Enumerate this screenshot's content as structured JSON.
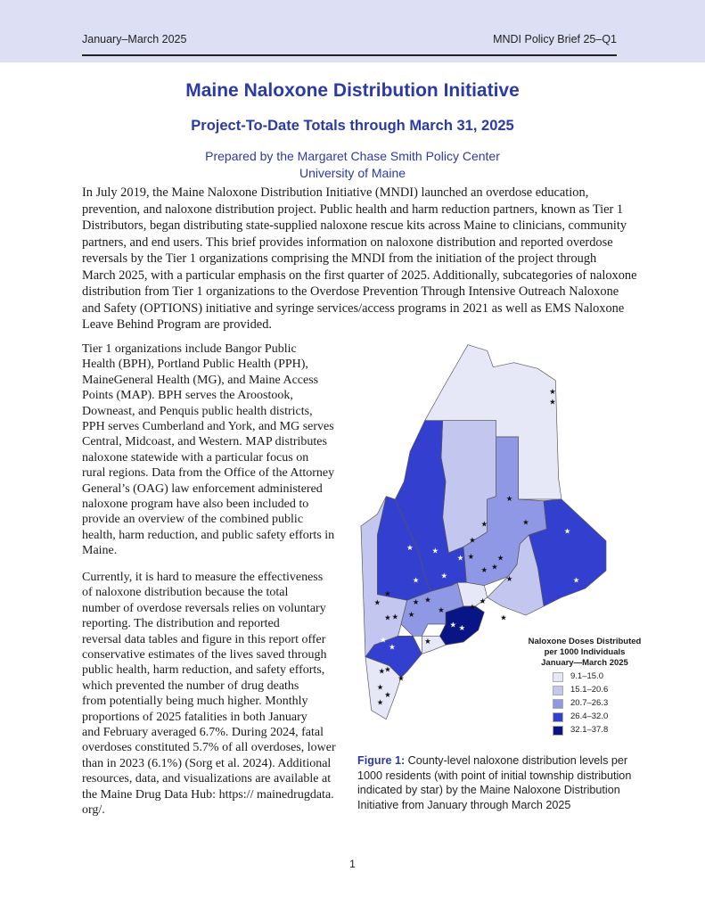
{
  "header": {
    "left": "January–March 2025",
    "right": "MNDI Policy Brief 25–Q1"
  },
  "title": "Maine Naloxone Distribution Initiative",
  "subtitle": "Project-To-Date Totals through March 31, 2025",
  "prepared_by": [
    "Prepared by the Margaret Chase Smith Policy Center",
    "University of Maine"
  ],
  "intro_lines": [
    "In July 2019, the Maine Naloxone Distribution Initiative (MNDI) launched an overdose education,",
    "prevention, and naloxone distribution project. Public health and harm reduction partners, known as Tier 1",
    "Distributors, began distributing state-supplied naloxone rescue kits across Maine to clinicians, community",
    "partners, and end users. This brief provides information on naloxone distribution and reported overdose",
    "reversals by the Tier 1 organizations comprising the MNDI from the initiation of the project through",
    "March 2025, with a particular emphasis on the first quarter of 2025. Additionally, subcategories of naloxone",
    "distribution from Tier 1 organizations to the Overdose Prevention Through Intensive Outreach Naloxone",
    "and Safety (OPTIONS) initiative and syringe services/access programs in 2021 as well as EMS Naloxone",
    "Leave Behind Program are provided."
  ],
  "para1_lines": [
    "Tier 1 organizations include Bangor Public",
    "Health (BPH), Portland Public Health (PPH),",
    "MaineGeneral Health (MG), and Maine Access",
    "Points (MAP). BPH serves the Aroostook,",
    "Downeast, and Penquis public health districts,",
    "PPH serves Cumberland and York, and MG serves",
    "Central, Midcoast, and Western. MAP distributes",
    "naloxone statewide with a particular focus on",
    "rural regions. Data from the Office of the Attorney",
    "General’s (OAG) law enforcement administered",
    "naloxone program have also been included to",
    "provide an overview of the combined public",
    "health, harm reduction, and public safety efforts in",
    "Maine."
  ],
  "para2_lines": [
    "Currently, it is hard to measure the effectiveness",
    "of naloxone distribution because the total",
    "number of overdose reversals relies on voluntary",
    "reporting. The distribution and reported",
    "reversal data tables and figure in this report offer",
    "conservative estimates of the lives saved through",
    "public health, harm reduction, and safety efforts,",
    "which prevented the number of drug deaths",
    "from potentially being much higher. Monthly",
    "proportions of 2025 fatalities in both January",
    "and February averaged 6.7%. During 2024, fatal",
    "overdoses constituted 5.7% of all overdoses, lower",
    "than in 2023 (6.1%) (Sorg et al. 2024). Additional",
    "resources, data, and visualizations are available at",
    "the Maine Drug Data Hub: https:// mainedrugdata.",
    "org/."
  ],
  "legend": {
    "title": [
      "Naloxone Doses Distributed",
      "per 1000 Individuals",
      "January—March 2025"
    ],
    "items": [
      {
        "label": "9.1–15.0",
        "color": "#e6e7f7"
      },
      {
        "label": "15.1–20.6",
        "color": "#c3c6ef"
      },
      {
        "label": "20.7–26.3",
        "color": "#8f98e4"
      },
      {
        "label": "26.4–32.0",
        "color": "#3340cf"
      },
      {
        "label": "32.1–37.8",
        "color": "#0a1585"
      }
    ]
  },
  "caption": {
    "label": "Figure 1:",
    "text": " County-level naloxone distribution levels per 1000 residents (with point of initial township distribution indicated by star) by the Maine Naloxone Distribution Initiative from January through March 2025"
  },
  "page_number": "1"
}
